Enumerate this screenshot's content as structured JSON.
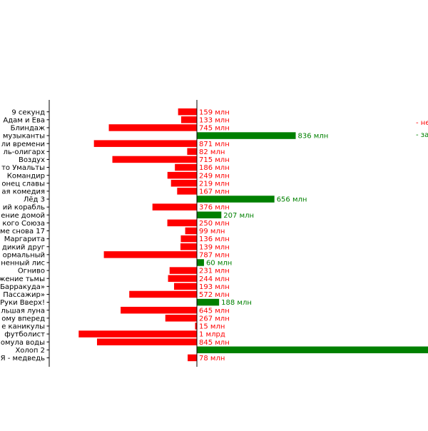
{
  "chart_data": {
    "type": "bar",
    "orientation": "horizontal",
    "categories": [
      "9 секунд",
      "Адам и Ева",
      "Блиндаж",
      "музыканты",
      "ли времени",
      "ль-олигарх",
      "Воздух",
      "то Умальты",
      "Командир",
      "онец славы",
      "ая комедия",
      "Лёд 3",
      "ий корабль",
      "ение домой",
      "кого Союза",
      "ме снова 17",
      "Маргарита",
      "дикий друг",
      "ормальный",
      "ненный лис",
      "Огниво",
      "жение тьмы",
      "Барракуда»",
      "Пассажир»",
      "Руки Вверх!",
      "льшая луна",
      "ому вперед",
      "е каникулы",
      "футболист",
      "омула воды",
      "Холоп 2",
      "Я - медведь"
    ],
    "values": [
      -159,
      -133,
      -745,
      836,
      -871,
      -82,
      -715,
      -186,
      -249,
      -219,
      -167,
      656,
      -376,
      207,
      -250,
      -99,
      -136,
      -139,
      -787,
      60,
      -231,
      -244,
      -193,
      -572,
      188,
      -645,
      -267,
      -15,
      -1000,
      -845,
      2000,
      -78
    ],
    "value_labels": [
      "159 млн",
      "133 млн",
      "745 млн",
      "836 млн",
      "871 млн",
      "82 млн",
      "715 млн",
      "186 млн",
      "249 млн",
      "219 млн",
      "167 млн",
      "656 млн",
      "376 млн",
      "207 млн",
      "250 млн",
      "99 млн",
      "136 млн",
      "139 млн",
      "787 млн",
      "60 млн",
      "231 млн",
      "244 млн",
      "193 млн",
      "572 млн",
      "188 млн",
      "645 млн",
      "267 млн",
      "15 млн",
      "1 млрд",
      "845 млн",
      "",
      "78 млн"
    ],
    "value_unit": "млн",
    "legend": [
      "- не",
      "- за"
    ],
    "legend_placement": "right",
    "colors": {
      "negative": "#ff0000",
      "positive": "#008000",
      "axis": "#000000"
    },
    "title": "",
    "xlabel": "",
    "ylabel": "",
    "xlim": [
      -1250,
      1950
    ]
  }
}
